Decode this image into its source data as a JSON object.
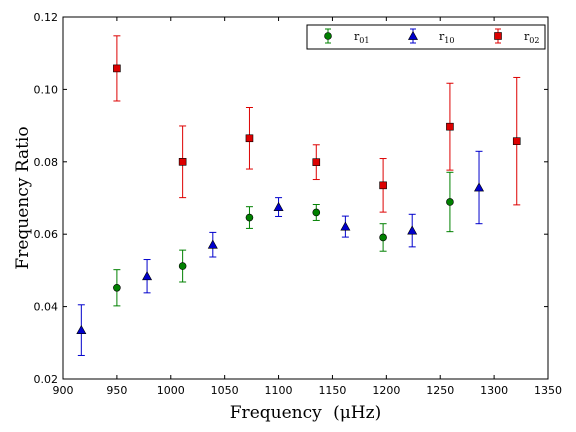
{
  "chart_data": {
    "type": "scatter",
    "xlabel": "Frequency",
    "xlabel_unit": "(μHz)",
    "ylabel": "Frequency Ratio",
    "xlim": [
      900,
      1350
    ],
    "ylim": [
      0.02,
      0.12
    ],
    "x_ticks": [
      900,
      950,
      1000,
      1050,
      1100,
      1150,
      1200,
      1250,
      1300,
      1350
    ],
    "y_ticks": [
      0.02,
      0.04,
      0.06,
      0.08,
      0.1,
      0.12
    ],
    "grid": false,
    "legend_position": "top-right",
    "series": [
      {
        "name": "r01",
        "name_base": "r",
        "name_sub": "01",
        "color": "#008000",
        "marker": "circle",
        "points": [
          {
            "x": 950,
            "y": 0.0452,
            "err": 0.005
          },
          {
            "x": 1011,
            "y": 0.0512,
            "err": 0.0044
          },
          {
            "x": 1073,
            "y": 0.0646,
            "err": 0.003
          },
          {
            "x": 1135,
            "y": 0.066,
            "err": 0.0022
          },
          {
            "x": 1197,
            "y": 0.0591,
            "err": 0.0038
          },
          {
            "x": 1259,
            "y": 0.0689,
            "err": 0.0082
          }
        ]
      },
      {
        "name": "r10",
        "name_base": "r",
        "name_sub": "10",
        "color": "#0000cc",
        "marker": "triangle",
        "points": [
          {
            "x": 917,
            "y": 0.0335,
            "err": 0.007
          },
          {
            "x": 978,
            "y": 0.0484,
            "err": 0.0046
          },
          {
            "x": 1039,
            "y": 0.0571,
            "err": 0.0034
          },
          {
            "x": 1100,
            "y": 0.0675,
            "err": 0.0026
          },
          {
            "x": 1162,
            "y": 0.0621,
            "err": 0.0029
          },
          {
            "x": 1224,
            "y": 0.061,
            "err": 0.0045
          },
          {
            "x": 1286,
            "y": 0.0729,
            "err": 0.01
          }
        ]
      },
      {
        "name": "r02",
        "name_base": "r",
        "name_sub": "02",
        "color": "#dd0000",
        "marker": "square",
        "points": [
          {
            "x": 950,
            "y": 0.1058,
            "err": 0.009
          },
          {
            "x": 1011,
            "y": 0.08,
            "err": 0.0099
          },
          {
            "x": 1073,
            "y": 0.0865,
            "err": 0.0085
          },
          {
            "x": 1135,
            "y": 0.0799,
            "err": 0.0048
          },
          {
            "x": 1197,
            "y": 0.0735,
            "err": 0.0074
          },
          {
            "x": 1259,
            "y": 0.0897,
            "err": 0.012
          },
          {
            "x": 1321,
            "y": 0.0857,
            "err": 0.0176
          }
        ]
      }
    ]
  }
}
